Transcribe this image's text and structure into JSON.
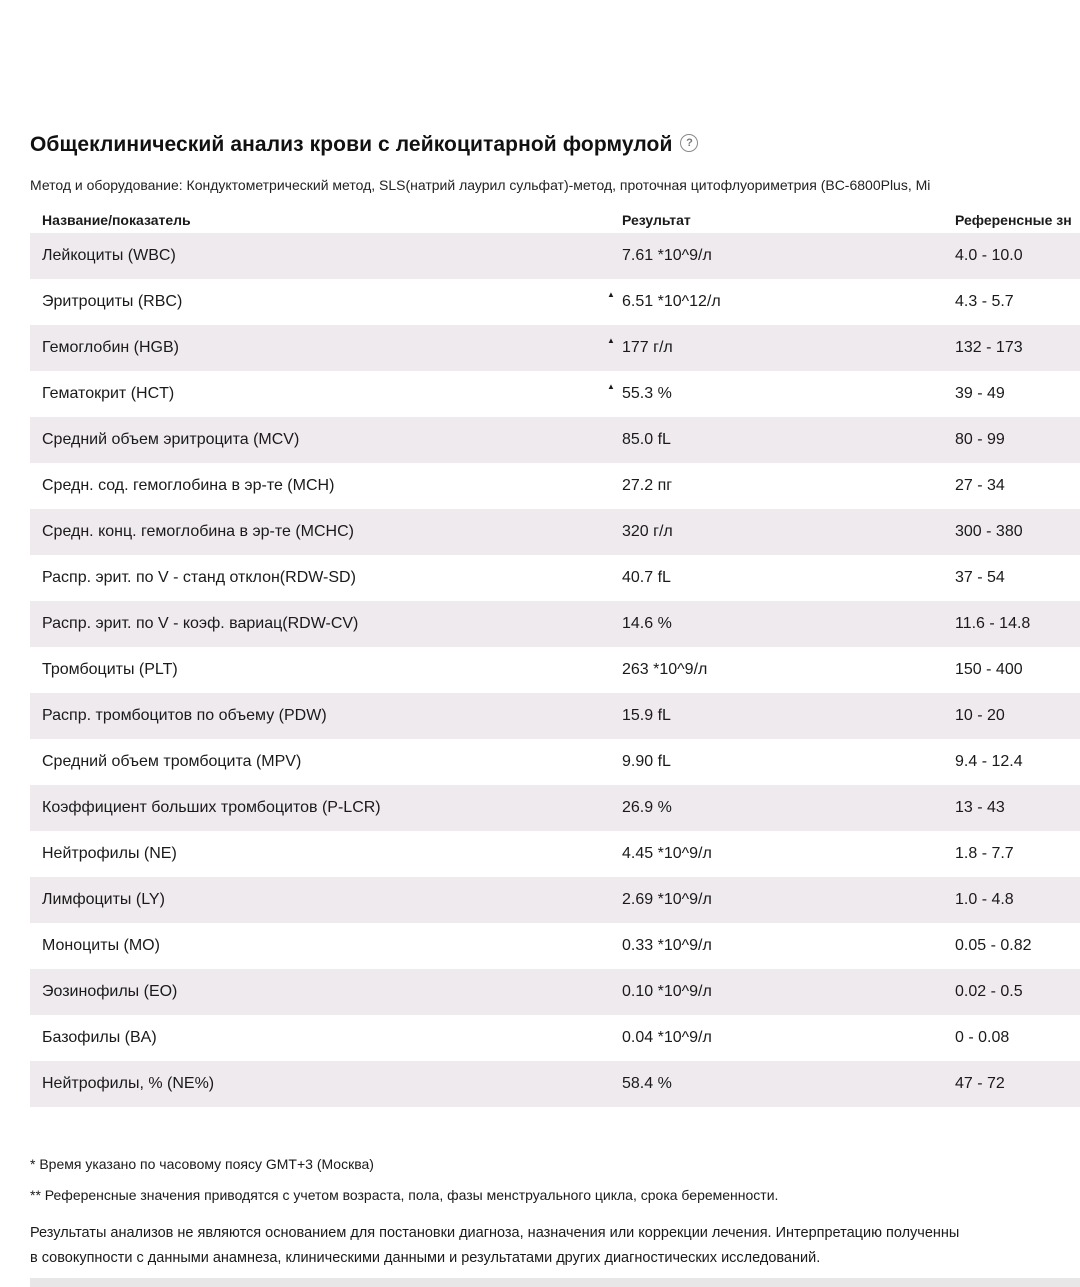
{
  "page": {
    "title": "Общеклинический анализ крови с лейкоцитарной формулой",
    "help_icon": "question-circle",
    "method_line": "Метод и оборудование: Кондуктометрический метод, SLS(натрий лаурил сульфат)-метод, проточная цитофлуориметрия (BC-6800Plus, Mi"
  },
  "colors": {
    "row_shade": "#efeaee",
    "text": "#1a1a1a",
    "bottom_bar": "#e9e6e8",
    "help_icon_gray": "#8a8a8a"
  },
  "table": {
    "columns": {
      "name": "Название/показатель",
      "result": "Результат",
      "reference": "Референсные зн"
    },
    "flag_glyph": "▲",
    "rows": [
      {
        "name": "Лейкоциты (WBC)",
        "flag": "",
        "result": "7.61 *10^9/л",
        "reference": "4.0 - 10.0"
      },
      {
        "name": "Эритроциты (RBC)",
        "flag": "high",
        "result": "6.51 *10^12/л",
        "reference": "4.3 - 5.7"
      },
      {
        "name": "Гемоглобин (HGB)",
        "flag": "high",
        "result": "177 г/л",
        "reference": "132 - 173"
      },
      {
        "name": "Гематокрит (HCT)",
        "flag": "high",
        "result": "55.3 %",
        "reference": "39 - 49"
      },
      {
        "name": "Средний объем эритроцита (MCV)",
        "flag": "",
        "result": "85.0 fL",
        "reference": "80 - 99"
      },
      {
        "name": "Средн. сод. гемоглобина в эр-те (MCH)",
        "flag": "",
        "result": "27.2 пг",
        "reference": "27 - 34"
      },
      {
        "name": "Средн. конц. гемоглобина в эр-те (MCHC)",
        "flag": "",
        "result": "320 г/л",
        "reference": "300 - 380"
      },
      {
        "name": "Распр. эрит. по V - станд отклон(RDW-SD)",
        "flag": "",
        "result": "40.7 fL",
        "reference": "37 - 54"
      },
      {
        "name": "Распр. эрит. по V - коэф. вариац(RDW-CV)",
        "flag": "",
        "result": "14.6 %",
        "reference": "11.6 - 14.8"
      },
      {
        "name": "Тромбоциты (PLT)",
        "flag": "",
        "result": "263 *10^9/л",
        "reference": "150 - 400"
      },
      {
        "name": "Распр. тромбоцитов по объему (PDW)",
        "flag": "",
        "result": "15.9 fL",
        "reference": "10 - 20"
      },
      {
        "name": "Средний объем тромбоцита (MPV)",
        "flag": "",
        "result": "9.90 fL",
        "reference": "9.4 - 12.4"
      },
      {
        "name": "Коэффициент больших тромбоцитов (P-LCR)",
        "flag": "",
        "result": "26.9 %",
        "reference": "13 - 43"
      },
      {
        "name": "Нейтрофилы (NE)",
        "flag": "",
        "result": "4.45 *10^9/л",
        "reference": "1.8 - 7.7"
      },
      {
        "name": "Лимфоциты (LY)",
        "flag": "",
        "result": "2.69 *10^9/л",
        "reference": "1.0 - 4.8"
      },
      {
        "name": "Моноциты (MO)",
        "flag": "",
        "result": "0.33 *10^9/л",
        "reference": "0.05 - 0.82"
      },
      {
        "name": "Эозинофилы (EO)",
        "flag": "",
        "result": "0.10 *10^9/л",
        "reference": "0.02 - 0.5"
      },
      {
        "name": "Базофилы (BA)",
        "flag": "",
        "result": "0.04 *10^9/л",
        "reference": "0 - 0.08"
      },
      {
        "name": "Нейтрофилы, % (NE%)",
        "flag": "",
        "result": "58.4 %",
        "reference": "47 - 72"
      }
    ]
  },
  "footnotes": {
    "line1": "* Время указано по часовому поясу GMT+3 (Москва)",
    "line2": "** Референсные значения приводятся с учетом возраста, пола, фазы менструального цикла, срока беременности."
  },
  "disclaimer": {
    "line1": "Результаты анализов не являются основанием для постановки диагноза, назначения или коррекции лечения. Интерпретацию полученны",
    "line2": "в совокупности с данными анамнеза, клиническими данными и результатами других диагностических исследований."
  }
}
